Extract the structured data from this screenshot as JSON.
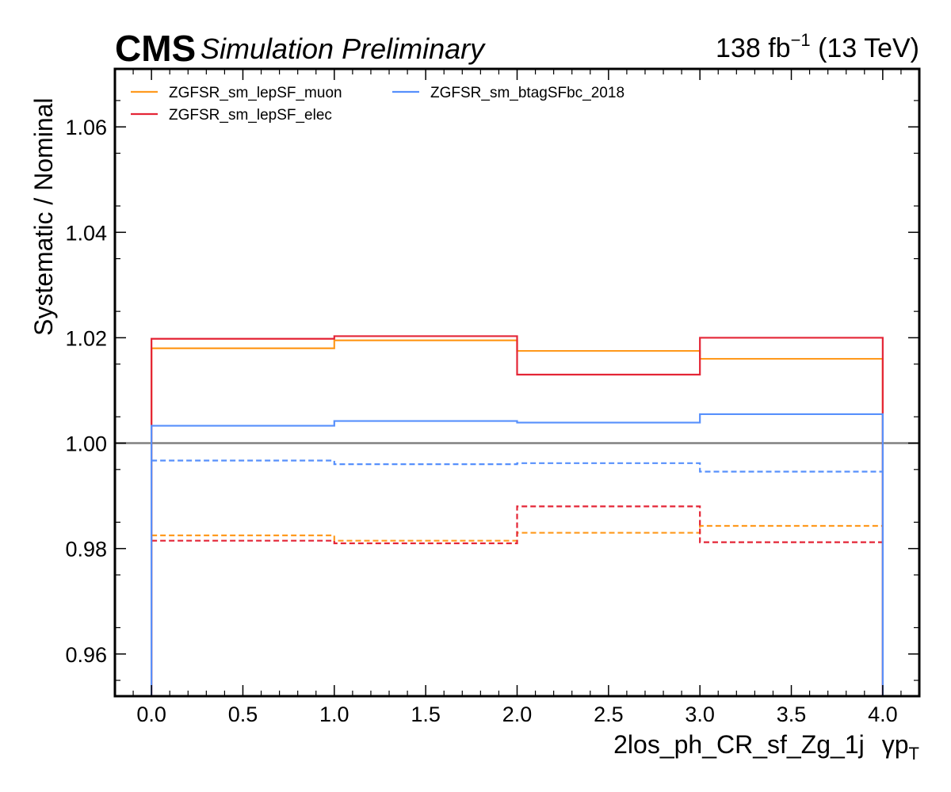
{
  "header": {
    "experiment": "CMS",
    "status": "Simulation Preliminary",
    "lumi": "138 fb",
    "lumi_exp": "−1",
    "energy": "(13 TeV)"
  },
  "chart_data": {
    "type": "line",
    "drawstyle": "steps",
    "xlabel": "2los_ph_CR_sf_Zg_1j",
    "xlabel_suffix": "γp",
    "xlabel_suffix_sub": "T",
    "ylabel": "Systematic / Nominal",
    "xlim": [
      -0.2,
      4.2
    ],
    "ylim": [
      0.952,
      1.071
    ],
    "bin_edges": [
      0,
      1,
      2,
      3,
      4
    ],
    "x_ticks": [
      "0.0",
      "0.5",
      "1.0",
      "1.5",
      "2.0",
      "2.5",
      "3.0",
      "3.5",
      "4.0"
    ],
    "x_tick_values": [
      0,
      0.5,
      1,
      1.5,
      2,
      2.5,
      3,
      3.5,
      4
    ],
    "y_ticks": [
      "0.96",
      "0.98",
      "1.00",
      "1.02",
      "1.04",
      "1.06"
    ],
    "y_tick_values": [
      0.96,
      0.98,
      1.0,
      1.02,
      1.04,
      1.06
    ],
    "reference_line": 1.0,
    "grid": false,
    "legend_position": "top-left",
    "series": [
      {
        "name": "ZGFSR_sm_lepSF_muon",
        "color": "#ff9a1f",
        "style": "solid",
        "values": [
          1.018,
          1.0195,
          1.0175,
          1.016
        ]
      },
      {
        "name": "ZGFSR_sm_lepSF_muon",
        "color": "#ff9a1f",
        "style": "dashed",
        "values": [
          0.9825,
          0.9815,
          0.983,
          0.9843
        ]
      },
      {
        "name": "ZGFSR_sm_lepSF_elec",
        "color": "#e42536",
        "style": "solid",
        "values": [
          1.0198,
          1.0203,
          1.013,
          1.02
        ]
      },
      {
        "name": "ZGFSR_sm_lepSF_elec",
        "color": "#e42536",
        "style": "dashed",
        "values": [
          0.9815,
          0.981,
          0.988,
          0.9812
        ]
      },
      {
        "name": "ZGFSR_sm_btagSFbc_2018",
        "color": "#5790fc",
        "style": "solid",
        "values": [
          1.0033,
          1.0042,
          1.0039,
          1.0055
        ]
      },
      {
        "name": "ZGFSR_sm_btagSFbc_2018",
        "color": "#5790fc",
        "style": "dashed",
        "values": [
          0.9967,
          0.996,
          0.9962,
          0.9946
        ]
      }
    ],
    "legend": [
      {
        "label": "ZGFSR_sm_lepSF_muon",
        "color": "#ff9a1f"
      },
      {
        "label": "ZGFSR_sm_lepSF_elec",
        "color": "#e42536"
      },
      {
        "label": "ZGFSR_sm_btagSFbc_2018",
        "color": "#5790fc"
      }
    ]
  }
}
